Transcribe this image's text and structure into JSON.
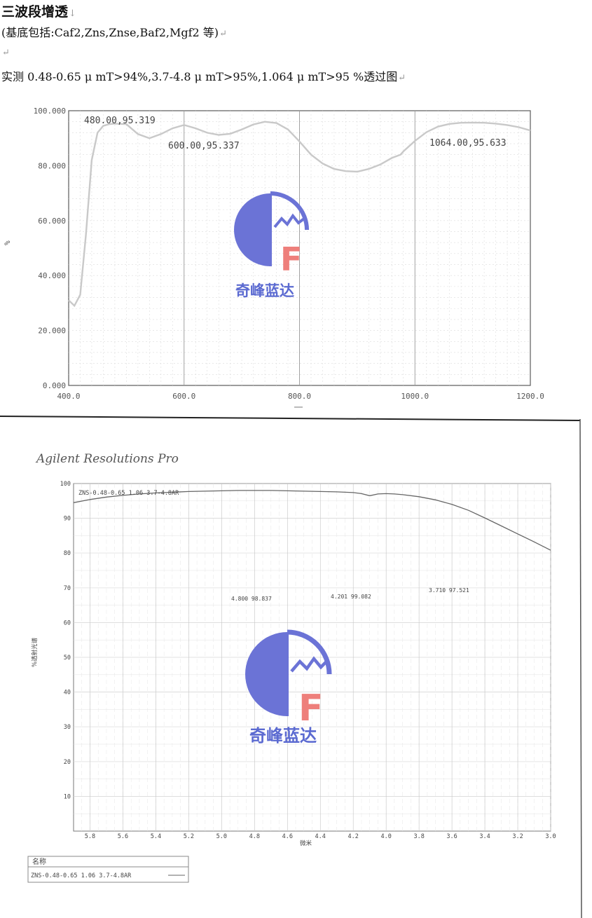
{
  "document": {
    "title": "三波段增透",
    "title_mark": "↓",
    "substrates": "(基底包括:Caf2,Zns,Znse,Baf2,Mgf2 等)",
    "spec": "实测 0.48-0.65 μ mT>94%,3.7-4.8 μ mT>95%,1.064 μ mT>95 %透过图",
    "return_mark": "↵"
  },
  "logo": {
    "text": "奇峰蓝达",
    "letter": "F",
    "colors": {
      "circle": "#6b73d6",
      "letter": "#ee7f7b"
    }
  },
  "chart_data": [
    {
      "type": "line",
      "title": "",
      "ylabel": "%",
      "xlabel": "",
      "xlim": [
        400,
        1200
      ],
      "ylim": [
        0,
        100
      ],
      "x_ticks": [
        "400.0",
        "600.0",
        "800.0",
        "1000.0",
        "1200.0"
      ],
      "y_ticks": [
        "0.000",
        "20.000",
        "40.000",
        "60.000",
        "80.000",
        "100.000"
      ],
      "grid": true,
      "annotations": [
        "480.00,95.319",
        "600.00,95.337",
        "1064.00,95.633"
      ],
      "series": [
        {
          "x": [
            400,
            410,
            420,
            430,
            440,
            450,
            460,
            470,
            480,
            500,
            520,
            540,
            560,
            580,
            600,
            620,
            640,
            660,
            680,
            700,
            720,
            740,
            760,
            780,
            800,
            820,
            840,
            860,
            880,
            900,
            920,
            940,
            960,
            975,
            980,
            1000,
            1020,
            1040,
            1060,
            1080,
            1100,
            1120,
            1140,
            1160,
            1180,
            1200
          ],
          "y": [
            31,
            29,
            33,
            55,
            82,
            92,
            94.5,
            95.1,
            95.3,
            95.1,
            91.5,
            90,
            91.5,
            93.6,
            94.8,
            93.6,
            92,
            91.2,
            91.6,
            93.2,
            95,
            96,
            95.5,
            93.2,
            88.8,
            84,
            80.8,
            78.8,
            78,
            77.8,
            78.8,
            80.4,
            82.8,
            84,
            85.2,
            89,
            92.2,
            94.2,
            95.2,
            95.6,
            95.7,
            95.6,
            95.3,
            94.8,
            94,
            92.8
          ]
        }
      ],
      "color": "#c9c9c9"
    },
    {
      "type": "line",
      "title": "",
      "brand": "Agilent Resolutions Pro",
      "ylabel": "%透射光谱",
      "xlabel": "微米",
      "xlim": [
        5.9,
        3.0
      ],
      "ylim": [
        0,
        100
      ],
      "x_ticks": [
        "5.8",
        "5.6",
        "5.4",
        "5.2",
        "5.0",
        "4.8",
        "4.6",
        "4.4",
        "4.2",
        "4.0",
        "3.8",
        "3.6",
        "3.4",
        "3.2",
        "3.0"
      ],
      "y_ticks": [
        "10",
        "20",
        "30",
        "40",
        "50",
        "60",
        "70",
        "80",
        "90",
        "100"
      ],
      "grid": true,
      "header_label": "ZNS-0.48-0.65 1.06 3.7-4.8AR",
      "annotations": [
        "4.800 98.837",
        "4.201 99.082",
        "3.710 97.521"
      ],
      "legend": {
        "header": "名称",
        "entry": "ZNS-0.48-0.65 1.06 3.7-4.8AR"
      },
      "series": [
        {
          "name": "ZNS-0.48-0.65 1.06 3.7-4.8AR",
          "x": [
            5.9,
            5.8,
            5.7,
            5.6,
            5.5,
            5.4,
            5.3,
            5.2,
            5.1,
            5.0,
            4.9,
            4.8,
            4.7,
            4.6,
            4.5,
            4.4,
            4.3,
            4.2,
            4.15,
            4.1,
            4.05,
            4.0,
            3.95,
            3.9,
            3.8,
            3.7,
            3.6,
            3.5,
            3.4,
            3.3,
            3.2,
            3.1,
            3.0
          ],
          "y": [
            94.5,
            95.4,
            96.1,
            96.6,
            97,
            97.3,
            97.5,
            97.7,
            97.8,
            97.9,
            98,
            98,
            98,
            97.9,
            97.8,
            97.7,
            97.6,
            97.4,
            97.1,
            96.5,
            97,
            97.1,
            97,
            96.8,
            96.2,
            95.3,
            94,
            92.3,
            90.1,
            87.8,
            85.5,
            83.2,
            80.8
          ]
        }
      ],
      "color": "#666666"
    }
  ]
}
